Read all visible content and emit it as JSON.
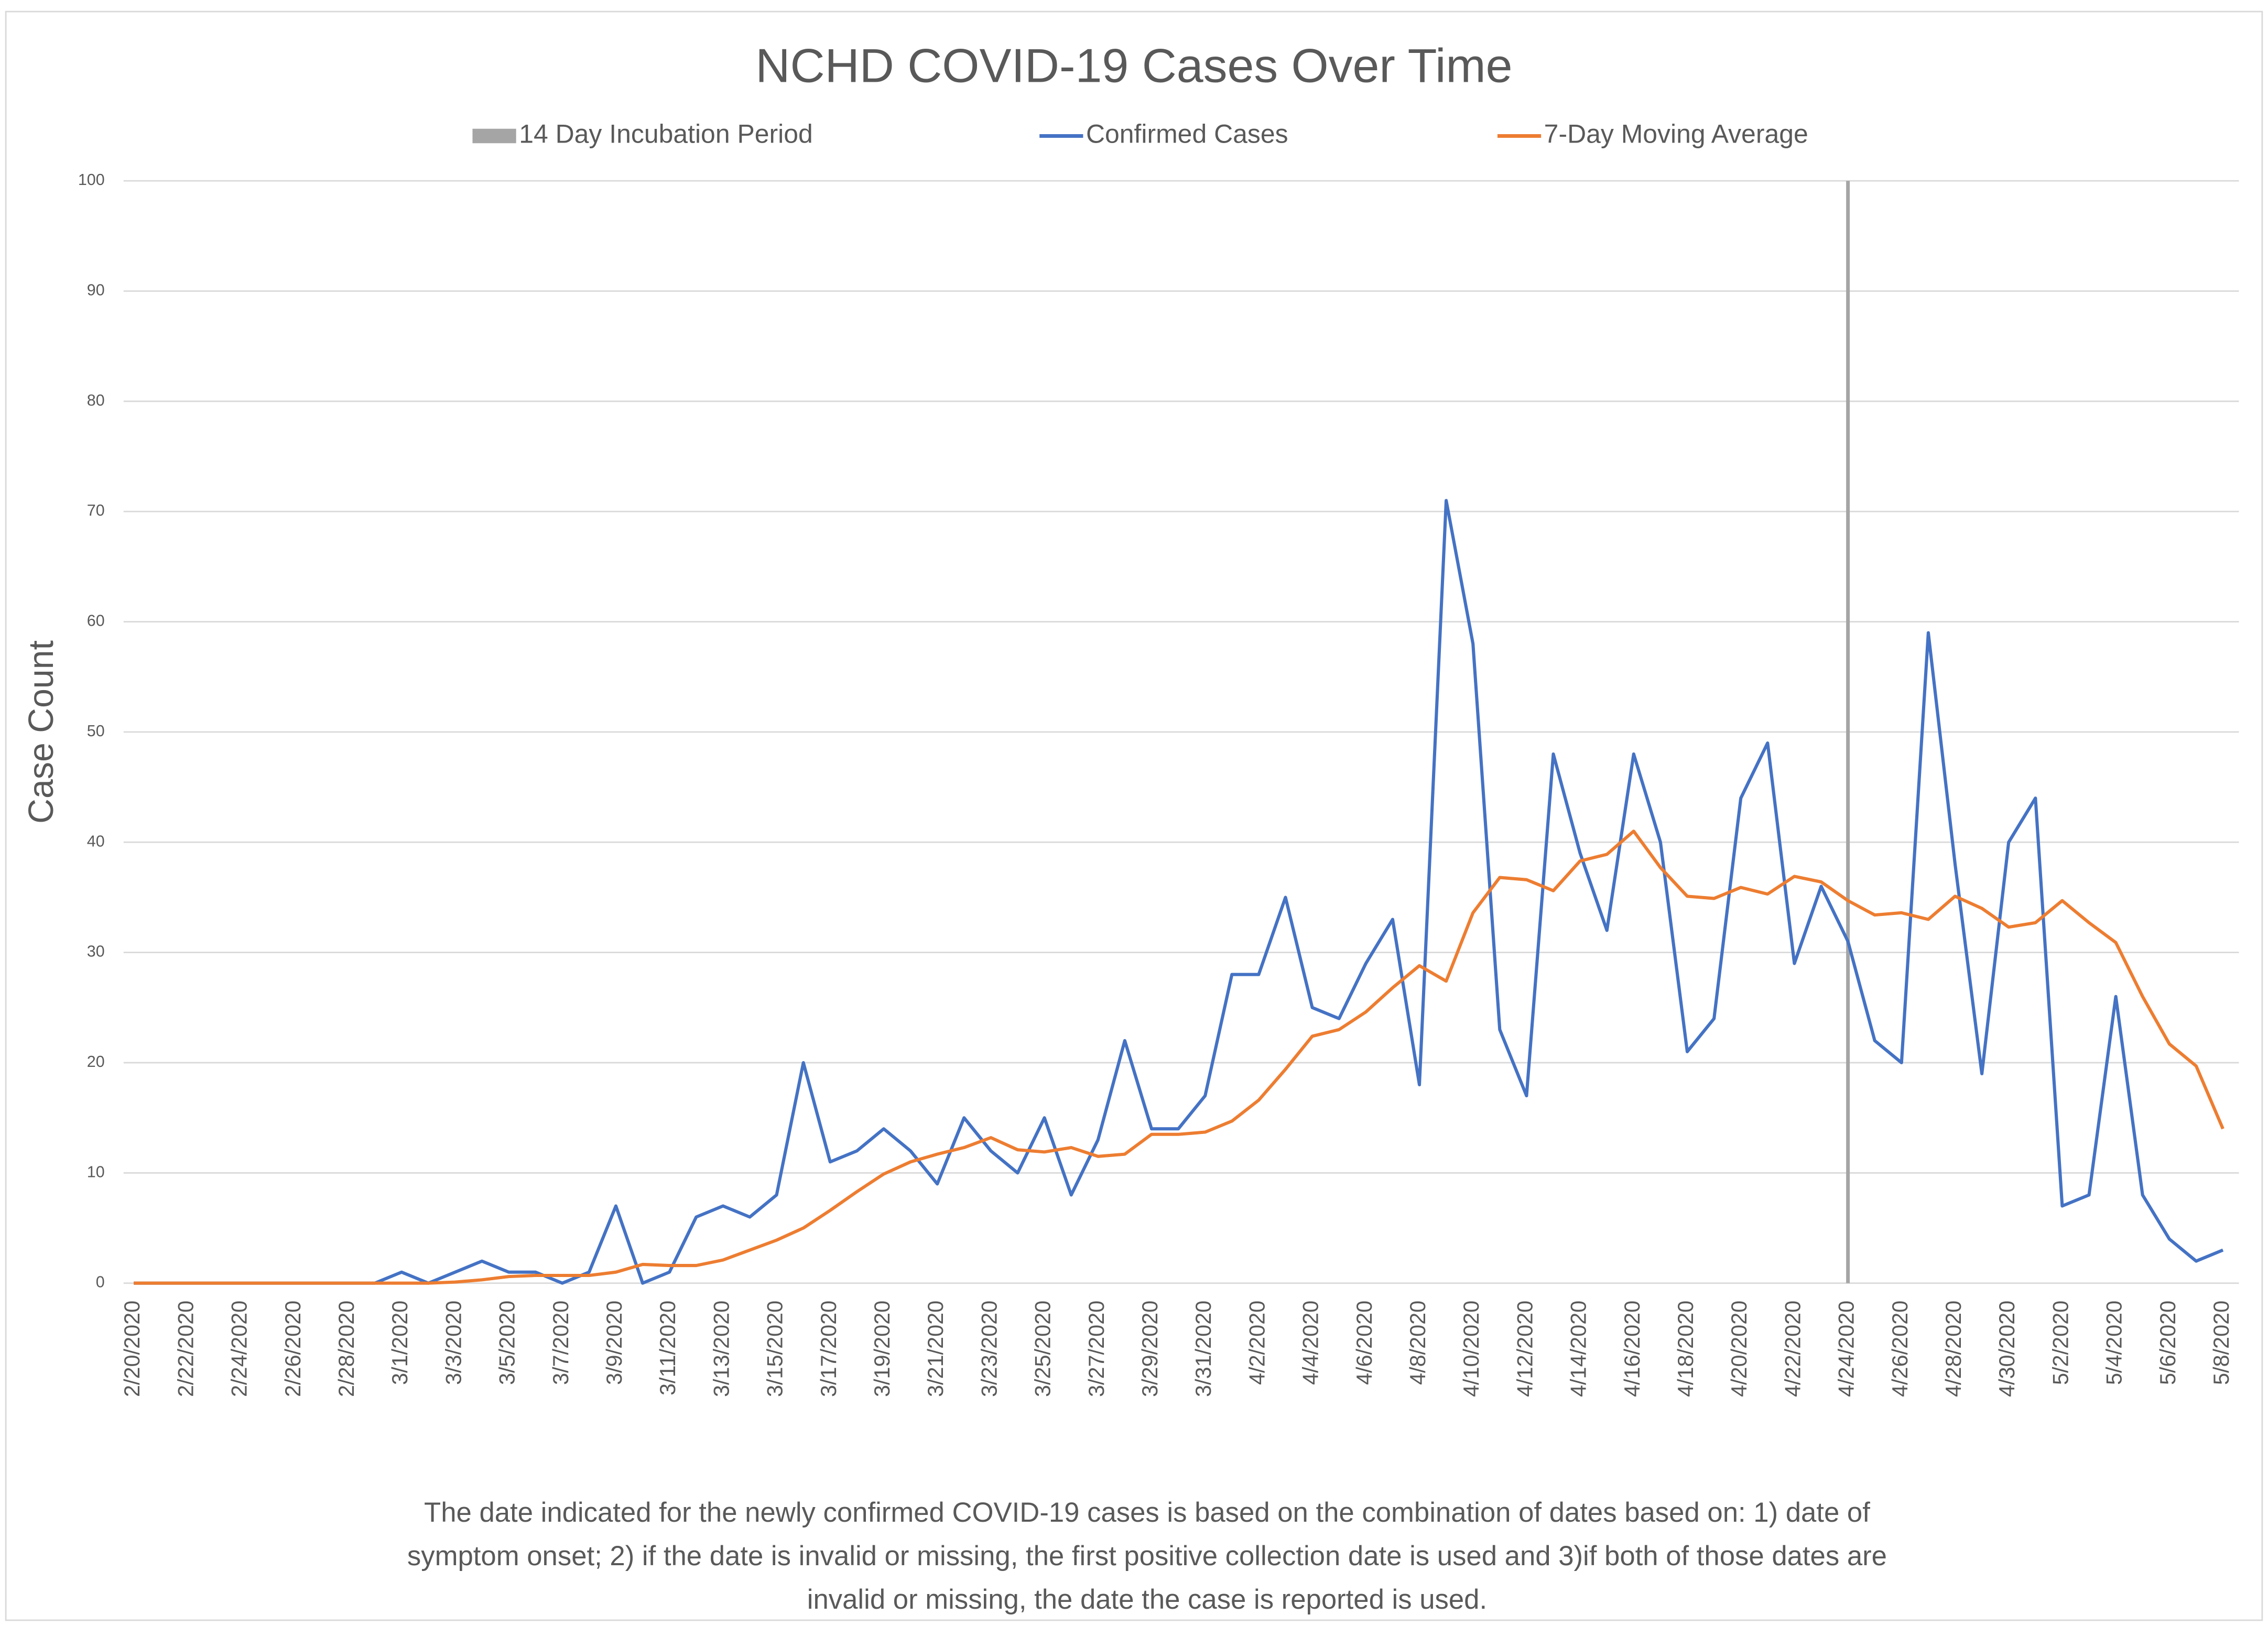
{
  "chart_data": {
    "type": "line",
    "title": "NCHD COVID-19 Cases Over Time",
    "ylabel": "Case Count",
    "footnote": [
      "The date indicated for the newly confirmed COVID-19 cases is based on the combination of dates based on: 1) date of",
      "symptom onset; 2) if the date is invalid or missing, the first positive collection date is used and 3)if both of those dates are",
      "invalid or missing, the date the case is reported is used."
    ],
    "categories": [
      "2/20/2020",
      null,
      "2/22/2020",
      null,
      "2/24/2020",
      null,
      "2/26/2020",
      null,
      "2/28/2020",
      null,
      "3/1/2020",
      null,
      "3/3/2020",
      null,
      "3/5/2020",
      null,
      "3/7/2020",
      null,
      "3/9/2020",
      null,
      "3/11/2020",
      null,
      "3/13/2020",
      null,
      "3/15/2020",
      null,
      "3/17/2020",
      null,
      "3/19/2020",
      null,
      "3/21/2020",
      null,
      "3/23/2020",
      null,
      "3/25/2020",
      null,
      "3/27/2020",
      null,
      "3/29/2020",
      null,
      "3/31/2020",
      null,
      "4/2/2020",
      null,
      "4/4/2020",
      null,
      "4/6/2020",
      null,
      "4/8/2020",
      null,
      "4/10/2020",
      null,
      "4/12/2020",
      null,
      "4/14/2020",
      null,
      "4/16/2020",
      null,
      "4/18/2020",
      null,
      "4/20/2020",
      null,
      "4/22/2020",
      null,
      "4/24/2020",
      null,
      "4/26/2020",
      null,
      "4/28/2020",
      null,
      "4/30/2020",
      null,
      "5/2/2020",
      null,
      "5/4/2020",
      null,
      "5/6/2020",
      null,
      "5/8/2020"
    ],
    "incubation": {
      "name": "14 Day Incubation Period",
      "color": "#a5a5a5",
      "x": "4/24/2020"
    },
    "series": [
      {
        "name": "Confirmed Cases",
        "color": "#4472c4",
        "values": [
          0,
          0,
          0,
          0,
          0,
          0,
          0,
          0,
          0,
          0,
          1,
          0,
          1,
          2,
          1,
          1,
          0,
          1,
          7,
          0,
          1,
          6,
          7,
          6,
          8,
          20,
          11,
          12,
          14,
          12,
          9,
          15,
          12,
          10,
          15,
          8,
          13,
          22,
          14,
          14,
          17,
          28,
          28,
          35,
          25,
          24,
          29,
          33,
          18,
          71,
          58,
          23,
          17,
          48,
          39,
          32,
          48,
          40,
          21,
          24,
          44,
          49,
          29,
          36,
          31,
          22,
          20,
          59,
          38,
          19,
          40,
          44,
          7,
          8,
          26,
          8,
          4,
          2,
          3
        ]
      },
      {
        "name": "7-Day Moving Average",
        "color": "#ed7d31",
        "values": [
          0,
          0,
          0,
          0,
          0,
          0,
          0,
          0,
          0,
          0,
          0,
          0,
          0.1,
          0.3,
          0.6,
          0.7,
          0.7,
          0.7,
          1.0,
          1.7,
          1.6,
          1.6,
          2.1,
          3.0,
          3.9,
          5.0,
          6.6,
          8.3,
          9.9,
          11,
          11.7,
          12.3,
          13.2,
          12.1,
          11.9,
          12.3,
          11.5,
          11.7,
          13.5,
          13.5,
          13.7,
          14.7,
          16.6,
          19.4,
          22.4,
          23,
          24.6,
          26.8,
          28.8,
          27.4,
          33.6,
          36.8,
          36.6,
          35.6,
          38.3,
          38.9,
          41,
          37.7,
          35.1,
          34.9,
          35.9,
          35.3,
          36.9,
          36.4,
          34.7,
          33.4,
          33.6,
          33,
          35.1,
          34,
          32.3,
          32.7,
          34.7,
          32.7,
          30.9,
          26,
          21.7,
          19.7,
          14
        ]
      }
    ],
    "ylim": [
      0,
      100
    ],
    "yticks": [
      0,
      10,
      20,
      30,
      40,
      50,
      60,
      70,
      80,
      90,
      100
    ],
    "grid": true
  }
}
